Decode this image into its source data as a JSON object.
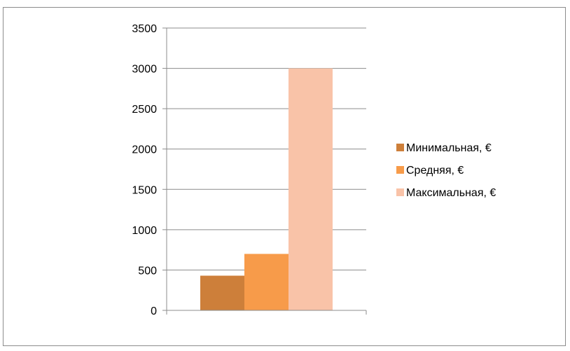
{
  "chart_data": {
    "type": "bar",
    "categories": [
      ""
    ],
    "series": [
      {
        "name": "Минимальная, €",
        "values": [
          430
        ],
        "color": "#cd7f3a"
      },
      {
        "name": "Средняя, €",
        "values": [
          700
        ],
        "color": "#f79b4a"
      },
      {
        "name": "Максимальная, €",
        "values": [
          3000
        ],
        "color": "#f9c3a8"
      }
    ],
    "title": "",
    "xlabel": "",
    "ylabel": "",
    "ylim": [
      0,
      3500
    ],
    "yticks": [
      0,
      500,
      1000,
      1500,
      2000,
      2500,
      3000,
      3500
    ],
    "ytick_labels": [
      "0",
      "500",
      "1000",
      "1500",
      "2000",
      "2500",
      "3000",
      "3500"
    ],
    "grid": true,
    "legend_position": "right",
    "colors": {
      "gridline": "#8c8c8c",
      "axis": "#8c8c8c",
      "frame": "#8c8c8c"
    }
  }
}
